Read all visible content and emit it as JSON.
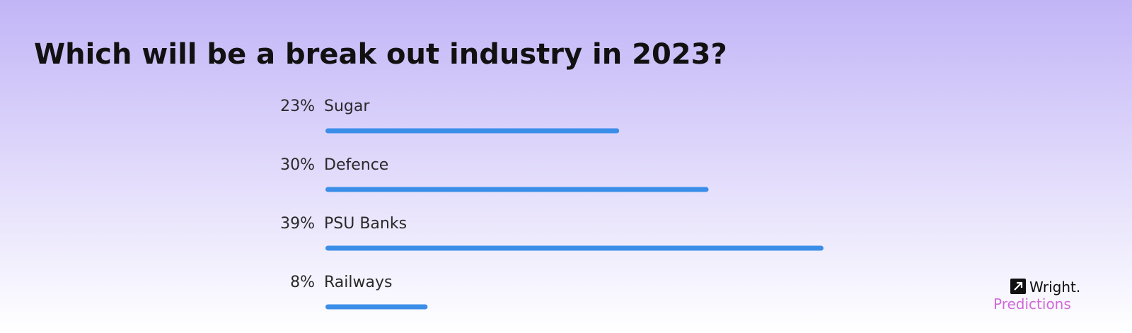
{
  "chart_data": {
    "type": "bar",
    "title": "Which will be a break out industry in 2023?",
    "categories": [
      "Sugar",
      "Defence",
      "PSU Banks",
      "Railways"
    ],
    "values": [
      23,
      30,
      39,
      8
    ],
    "value_labels": [
      "23%",
      "30%",
      "39%",
      "8%"
    ],
    "color": "#3b8ee8"
  },
  "branding": {
    "name": "Wright.",
    "product": "Predictions"
  }
}
